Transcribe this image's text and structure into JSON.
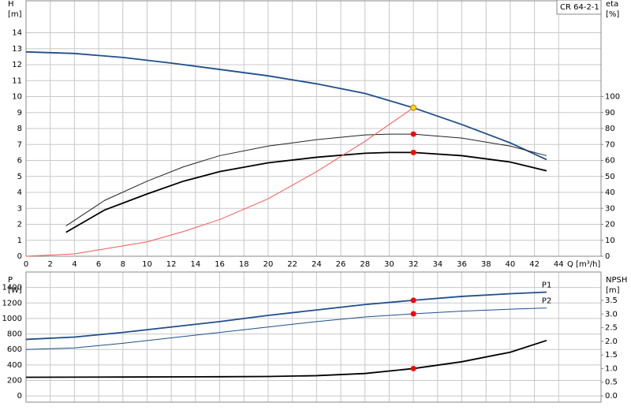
{
  "chart_data": [
    {
      "type": "line",
      "y_label": "H",
      "y_unit": "[m]",
      "y2_label": "eta",
      "y2_unit": "[%]",
      "x_label": "Q [m³/h]",
      "annotation": "CR 64-2-1",
      "xlim": [
        0,
        47.5
      ],
      "xticks": [
        0,
        2,
        4,
        6,
        8,
        10,
        12,
        14,
        16,
        18,
        20,
        22,
        24,
        26,
        28,
        30,
        32,
        34,
        36,
        38,
        40,
        42,
        44
      ],
      "ylim": [
        0,
        16
      ],
      "yticks": [
        0,
        1,
        2,
        3,
        4,
        5,
        6,
        7,
        8,
        9,
        10,
        11,
        12,
        13,
        14
      ],
      "y2lim": [
        0,
        160
      ],
      "y2ticks": [
        0,
        10,
        20,
        30,
        40,
        50,
        60,
        70,
        80,
        90,
        100
      ],
      "grid": true,
      "series": [
        {
          "color": "#1f4e8c",
          "width": 1.8,
          "x": [
            0,
            4,
            8,
            12,
            16,
            20,
            24,
            28,
            32,
            36,
            40,
            43
          ],
          "values": [
            12.8,
            12.7,
            12.45,
            12.1,
            11.7,
            11.3,
            10.8,
            10.2,
            9.3,
            8.25,
            7.1,
            6.05
          ]
        },
        {
          "color": "#222222",
          "width": 1,
          "axis": "y2",
          "x": [
            3.3,
            6.5,
            10,
            13,
            16,
            20,
            24,
            28,
            30,
            32,
            36,
            40,
            43
          ],
          "values": [
            19,
            35,
            47,
            56,
            63,
            69,
            73,
            76,
            76.5,
            76.5,
            74,
            69,
            63
          ]
        },
        {
          "color": "#000000",
          "width": 1.8,
          "axis": "y2",
          "x": [
            3.3,
            6.5,
            10,
            13,
            16,
            20,
            24,
            28,
            30,
            32,
            36,
            40,
            43
          ],
          "values": [
            15,
            29,
            39,
            47,
            53,
            58.5,
            62,
            64.5,
            65,
            65,
            63,
            59,
            53.5
          ]
        },
        {
          "color": "#ff5555",
          "width": 1,
          "x": [
            0,
            4,
            6,
            10,
            13,
            16,
            20,
            24,
            28,
            32
          ],
          "values": [
            0,
            0.15,
            0.4,
            0.9,
            1.55,
            2.3,
            3.6,
            5.3,
            7.2,
            9.3
          ]
        },
        {
          "style": "point",
          "color": "#ffd700",
          "x": [
            32
          ],
          "values": [
            9.3
          ]
        },
        {
          "style": "point",
          "color": "#ff0000",
          "axis": "y2",
          "x": [
            32,
            32
          ],
          "values": [
            76.5,
            65
          ]
        }
      ]
    },
    {
      "type": "line",
      "y_label": "P",
      "y_unit": "[W]",
      "y2_label": "NPSH",
      "y2_unit": "[m]",
      "show_xtick_labels": false,
      "xlim": [
        0,
        47.5
      ],
      "xticks": [
        0,
        2,
        4,
        6,
        8,
        10,
        12,
        14,
        16,
        18,
        20,
        22,
        24,
        26,
        28,
        30,
        32,
        34,
        36,
        38,
        40,
        42,
        44
      ],
      "ylim": [
        -80,
        1600
      ],
      "yticks": [
        0,
        200,
        400,
        600,
        800,
        1000,
        1200,
        1400
      ],
      "y2lim": [
        -0.23,
        4.54
      ],
      "y2ticks": [
        {
          "value": 0,
          "label": "0.0"
        },
        0.5,
        {
          "value": 1,
          "label": "1.0"
        },
        1.5,
        {
          "value": 2,
          "label": "2.0"
        },
        2.5,
        {
          "value": 3,
          "label": "3.0"
        },
        3.5
      ],
      "grid": true,
      "series": [
        {
          "name": "P1",
          "color": "#1f4e8c",
          "width": 1.8,
          "x": [
            0,
            4,
            8,
            12,
            16,
            20,
            24,
            28,
            32,
            36,
            40,
            43
          ],
          "values": [
            730,
            760,
            820,
            890,
            960,
            1040,
            1110,
            1180,
            1235,
            1285,
            1320,
            1340
          ]
        },
        {
          "name": "P2",
          "color": "#1f4e8c",
          "width": 1,
          "x": [
            0,
            4,
            8,
            12,
            16,
            20,
            24,
            28,
            32,
            36,
            40,
            43
          ],
          "values": [
            600,
            620,
            680,
            750,
            820,
            890,
            960,
            1020,
            1060,
            1095,
            1120,
            1135
          ]
        },
        {
          "color": "#000000",
          "width": 1.8,
          "axis": "y2",
          "x": [
            0,
            8,
            16,
            20,
            24,
            28,
            32,
            36,
            40,
            43
          ],
          "values": [
            0.68,
            0.69,
            0.7,
            0.71,
            0.74,
            0.82,
            1.0,
            1.25,
            1.6,
            2.03
          ]
        },
        {
          "style": "point",
          "color": "#ff0000",
          "x": [
            32,
            32
          ],
          "values": [
            1235,
            1060
          ]
        },
        {
          "style": "point",
          "color": "#ff0000",
          "axis": "y2",
          "x": [
            32
          ],
          "values": [
            1.0
          ]
        }
      ]
    }
  ]
}
